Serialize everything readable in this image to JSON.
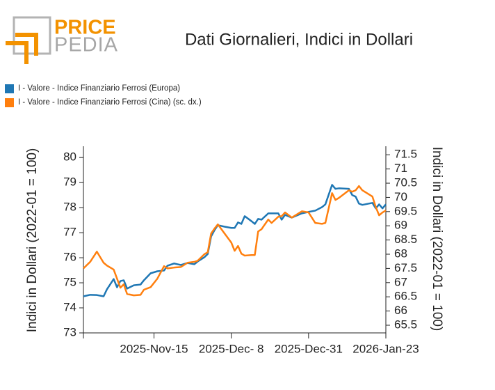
{
  "logo": {
    "top": "PRICE",
    "bottom": "PEDIA"
  },
  "chart_data": {
    "type": "line",
    "title": "Dati Giornalieri, Indici in Dollari",
    "ylabel": "Indici in Dollari (2022-01 = 100)",
    "y2label": "Indici in Dollari (2022-01 = 100)",
    "x": [
      "2025-10-25",
      "2025-10-27",
      "2025-10-29",
      "2025-10-31",
      "2025-11-01",
      "2025-11-03",
      "2025-11-04",
      "2025-11-05",
      "2025-11-06",
      "2025-11-07",
      "2025-11-09",
      "2025-11-11",
      "2025-11-12",
      "2025-11-14",
      "2025-11-16",
      "2025-11-18",
      "2025-11-19",
      "2025-11-21",
      "2025-11-23",
      "2025-11-25",
      "2025-11-27",
      "2025-11-28",
      "2025-11-30",
      "2025-12-01",
      "2025-12-02",
      "2025-12-03",
      "2025-12-04",
      "2025-12-06",
      "2025-12-08",
      "2025-12-09",
      "2025-12-10",
      "2025-12-11",
      "2025-12-12",
      "2025-12-14",
      "2025-12-15",
      "2025-12-16",
      "2025-12-17",
      "2025-12-19",
      "2025-12-20",
      "2025-12-22",
      "2025-12-23",
      "2025-12-24",
      "2025-12-26",
      "2025-12-29",
      "2025-12-31",
      "2026-01-02",
      "2026-01-04",
      "2026-01-05",
      "2026-01-07",
      "2026-01-08",
      "2026-01-09",
      "2026-01-12",
      "2026-01-13",
      "2026-01-14",
      "2026-01-15",
      "2026-01-16",
      "2026-01-19",
      "2026-01-20",
      "2026-01-21",
      "2026-01-22",
      "2026-01-23"
    ],
    "series": [
      {
        "name": "I - Valore - Indice Finanziario Ferrosi (Europa)",
        "color": "#1f77b4",
        "axis": "y",
        "values": [
          74.46,
          74.52,
          74.51,
          74.46,
          74.74,
          75.15,
          74.82,
          75.07,
          75.1,
          74.77,
          74.9,
          74.93,
          75.1,
          75.38,
          75.46,
          75.49,
          75.68,
          75.77,
          75.71,
          75.79,
          75.74,
          75.85,
          76.02,
          76.15,
          76.85,
          77.1,
          77.3,
          77.24,
          77.19,
          77.19,
          77.41,
          77.35,
          77.66,
          77.46,
          77.35,
          77.55,
          77.52,
          77.77,
          77.77,
          77.77,
          77.52,
          77.71,
          77.6,
          77.77,
          77.83,
          77.88,
          78.02,
          78.13,
          78.91,
          78.75,
          78.77,
          78.75,
          78.5,
          78.44,
          78.16,
          78.11,
          78.19,
          77.97,
          78.13,
          77.97,
          78.13
        ]
      },
      {
        "name": "I - Valore - Indice Finanziario Ferrosi (Cina) (sc. dx.)",
        "color": "#ff7f0e",
        "axis": "y2",
        "values": [
          67.5,
          67.73,
          68.09,
          67.7,
          67.6,
          67.46,
          67.14,
          66.82,
          66.94,
          66.6,
          66.55,
          66.57,
          66.75,
          66.84,
          67.14,
          67.58,
          67.5,
          67.53,
          67.55,
          67.7,
          67.73,
          67.77,
          68.0,
          68.07,
          68.73,
          68.9,
          69.05,
          68.73,
          68.41,
          68.12,
          68.29,
          68.02,
          67.95,
          67.97,
          67.97,
          68.8,
          68.88,
          69.22,
          69.1,
          69.32,
          69.34,
          69.47,
          69.29,
          69.51,
          69.47,
          69.1,
          69.07,
          69.1,
          70.15,
          69.91,
          69.98,
          70.25,
          70.2,
          70.25,
          70.4,
          70.25,
          70.03,
          69.66,
          69.37,
          69.47,
          69.54
        ]
      }
    ],
    "xlim": [
      "2025-10-25",
      "2026-01-23"
    ],
    "xticks": [
      {
        "value": "2025-11-15",
        "label": "2025-Nov-15"
      },
      {
        "value": "2025-12-08",
        "label": "2025-Dec- 8"
      },
      {
        "value": "2025-12-31",
        "label": "2025-Dec-31"
      },
      {
        "value": "2026-01-23",
        "label": "2026-Jan-23"
      }
    ],
    "ylim": [
      73,
      80.45
    ],
    "yticks": [
      73,
      74,
      75,
      76,
      77,
      78,
      79,
      80
    ],
    "y2lim": [
      65.23,
      71.8
    ],
    "y2ticks": [
      65.5,
      66,
      66.5,
      67,
      67.5,
      68,
      68.5,
      69,
      69.5,
      70,
      70.5,
      71,
      71.5
    ],
    "legend": "top-left",
    "grid": false
  }
}
